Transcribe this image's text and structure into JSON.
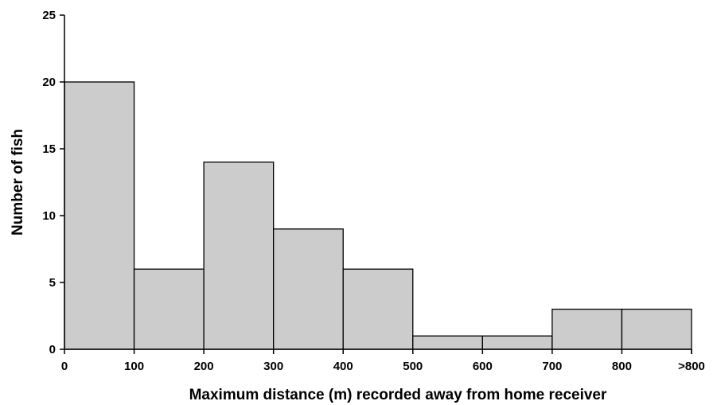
{
  "chart_data": {
    "type": "bar",
    "title": "",
    "xlabel": "Maximum distance (m) recorded away from home receiver",
    "ylabel": "Number of fish",
    "x_tick_labels": [
      "0",
      "100",
      "200",
      "300",
      "400",
      "500",
      "600",
      "700",
      "800",
      ">800"
    ],
    "categories": [
      "0-100",
      "100-200",
      "200-300",
      "300-400",
      "400-500",
      "500-600",
      "600-700",
      "700-800",
      ">800"
    ],
    "values": [
      20,
      6,
      14,
      9,
      6,
      1,
      1,
      3,
      3
    ],
    "ylim": [
      0,
      25
    ],
    "y_ticks": [
      0,
      5,
      10,
      15,
      20,
      25
    ],
    "grid": false,
    "legend": "none",
    "bar_color": "#cccccc",
    "edge_color": "#000000"
  }
}
